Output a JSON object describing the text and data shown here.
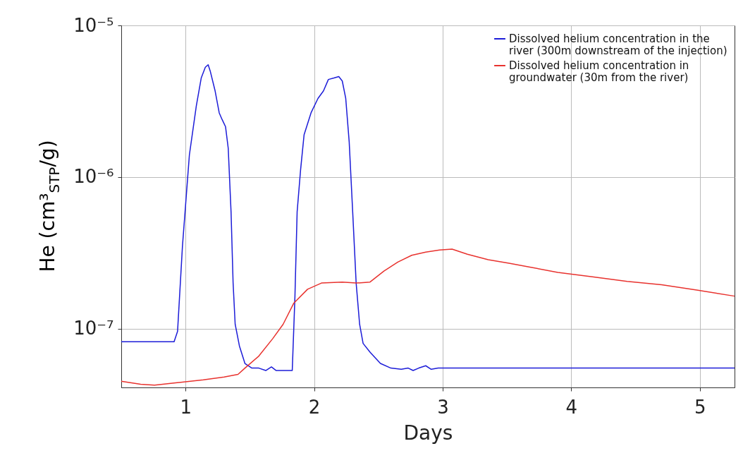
{
  "chart_data": {
    "type": "line",
    "xlabel": "Days",
    "ylabel": "He (cm³$_{STP}$/g)",
    "log": "y",
    "grid": true,
    "legend": "top right",
    "line_style": "solid",
    "marker": "none",
    "xlim": [
      0.5,
      5.27
    ],
    "xticks": [
      1,
      2,
      3,
      4,
      5
    ],
    "ylim": [
      4.1e-08,
      1e-05
    ],
    "yticks": [
      {
        "value": 1e-07,
        "label": "10⁻⁷"
      },
      {
        "value": 1e-06,
        "label": "10⁻⁶"
      },
      {
        "value": 1e-05,
        "label": "10⁻⁵"
      }
    ],
    "series": [
      {
        "name": "Dissolved helium concentration in the river (300m downstream of the injection)",
        "color": "#1c1cd8",
        "x": [
          0.5,
          0.911,
          0.938,
          0.976,
          1.03,
          1.084,
          1.122,
          1.154,
          1.176,
          1.192,
          1.23,
          1.262,
          1.284,
          1.311,
          1.332,
          1.354,
          1.37,
          1.386,
          1.419,
          1.462,
          1.516,
          1.57,
          1.624,
          1.668,
          1.705,
          1.759,
          1.83,
          1.851,
          1.868,
          1.895,
          1.922,
          1.976,
          2.03,
          2.073,
          2.111,
          2.154,
          2.192,
          2.219,
          2.246,
          2.273,
          2.3,
          2.327,
          2.354,
          2.381,
          2.435,
          2.516,
          2.597,
          2.678,
          2.732,
          2.77,
          2.814,
          2.868,
          2.911,
          2.965,
          3.03,
          5.27
        ],
        "values": [
          8.2e-08,
          8.2e-08,
          9.6e-08,
          3.5e-07,
          1.4e-06,
          2.95e-06,
          4.5e-06,
          5.3e-06,
          5.5e-06,
          5e-06,
          3.7e-06,
          2.65e-06,
          2.4e-06,
          2.15e-06,
          1.55e-06,
          5.9e-07,
          2e-07,
          1.07e-07,
          7.7e-08,
          5.9e-08,
          5.5e-08,
          5.5e-08,
          5.3e-08,
          5.6e-08,
          5.3e-08,
          5.3e-08,
          5.3e-08,
          1.64e-07,
          5.9e-07,
          1.12e-06,
          1.9e-06,
          2.65e-06,
          3.3e-06,
          3.7e-06,
          4.4e-06,
          4.5e-06,
          4.6e-06,
          4.3e-06,
          3.3e-06,
          1.7e-06,
          5.9e-07,
          2e-07,
          1.07e-07,
          8e-08,
          7e-08,
          5.9e-08,
          5.5e-08,
          5.4e-08,
          5.5e-08,
          5.3e-08,
          5.5e-08,
          5.7e-08,
          5.4e-08,
          5.5e-08,
          5.5e-08,
          5.5e-08
        ]
      },
      {
        "name": "Dissolved helium concentration in groundwater (30m from the river)",
        "color": "#e8322e",
        "x": [
          0.5,
          0.651,
          0.759,
          0.922,
          1.138,
          1.3,
          1.408,
          1.462,
          1.57,
          1.678,
          1.759,
          1.841,
          1.949,
          2.057,
          2.219,
          2.327,
          2.435,
          2.543,
          2.651,
          2.759,
          2.868,
          2.976,
          3.073,
          3.192,
          3.354,
          3.516,
          3.678,
          3.895,
          4.165,
          4.435,
          4.703,
          4.976,
          5.27
        ],
        "values": [
          4.5e-08,
          4.3e-08,
          4.25e-08,
          4.4e-08,
          4.6e-08,
          4.8e-08,
          5e-08,
          5.5e-08,
          6.6e-08,
          8.6e-08,
          1.07e-07,
          1.47e-07,
          1.82e-07,
          2e-07,
          2.03e-07,
          2e-07,
          2.03e-07,
          2.4e-07,
          2.75e-07,
          3.05e-07,
          3.2e-07,
          3.3e-07,
          3.35e-07,
          3.1e-07,
          2.85e-07,
          2.7e-07,
          2.55e-07,
          2.35e-07,
          2.2e-07,
          2.05e-07,
          1.95e-07,
          1.8e-07,
          1.64e-07
        ]
      }
    ]
  }
}
